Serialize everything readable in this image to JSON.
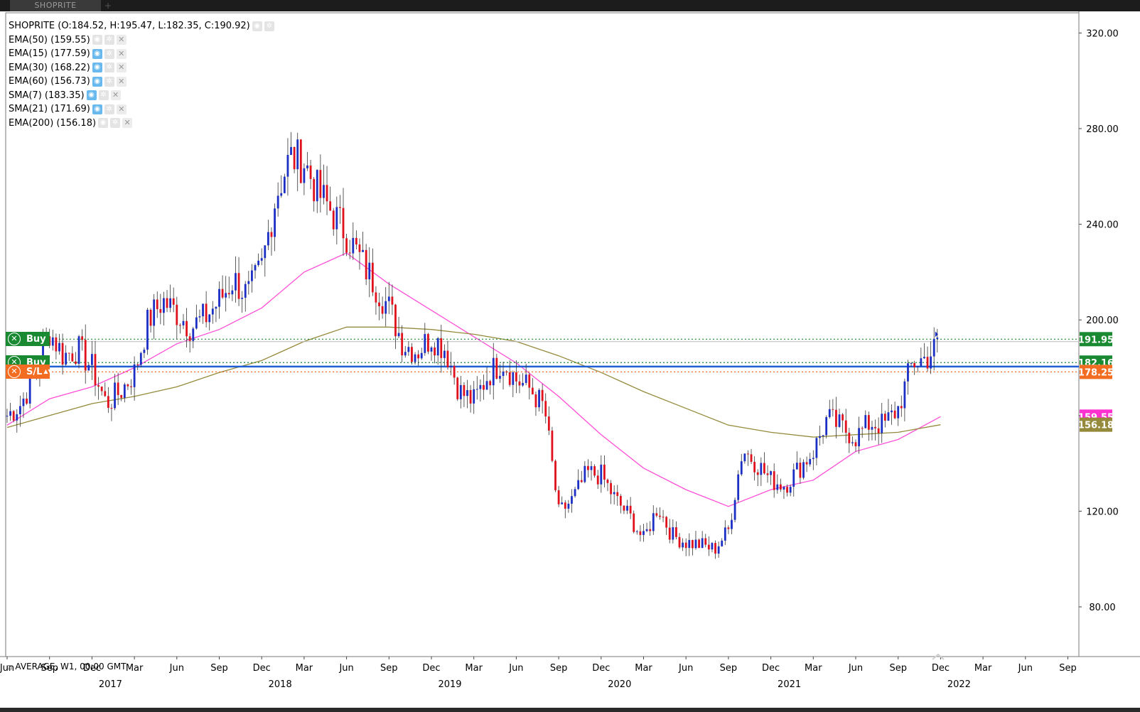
{
  "tabs": [
    {
      "label": "SHOPRITE",
      "active": true
    }
  ],
  "tab_add_label": "+",
  "legend": {
    "main": "SHOPRITE (O:184.52, H:195.47, L:182.35, C:190.92)",
    "indicators": [
      {
        "label": "EMA(50) (159.55)",
        "visible": false
      },
      {
        "label": "EMA(15) (177.59)",
        "visible": true
      },
      {
        "label": "EMA(30) (168.22)",
        "visible": true
      },
      {
        "label": "EMA(60) (156.73)",
        "visible": true
      },
      {
        "label": "SMA(7) (183.35)",
        "visible": true
      },
      {
        "label": "SMA(21) (171.69)",
        "visible": true
      },
      {
        "label": "EMA(200) (156.18)",
        "visible": false
      }
    ],
    "icons": {
      "eye": "eye-icon",
      "gear": "gear-icon",
      "close": "close-icon"
    }
  },
  "trade_tags": [
    {
      "label": "Buy",
      "color": "#1a8a32",
      "icon": "close-circle-icon"
    },
    {
      "label": "Buy",
      "color": "#1a8a32",
      "icon": "close-circle-icon"
    },
    {
      "label": "S/L",
      "color": "#f26d21",
      "icon": "close-circle-icon"
    }
  ],
  "status": {
    "label": "AVERAGE, W1, 00:00 GMT"
  },
  "chart_data": {
    "type": "candlestick",
    "symbol": "SHOPRITE",
    "timeframe": "W1",
    "ylim": [
      68,
      328
    ],
    "y_ticks": [
      80,
      120,
      160,
      200,
      240,
      280,
      320
    ],
    "y_tick_labels": [
      "80.00",
      "120.00",
      "",
      "200.00",
      "240.00",
      "280.00",
      "320.00"
    ],
    "x_ticks": [
      {
        "label": "Jun",
        "date": "2016-06"
      },
      {
        "label": "Sep",
        "date": "2016-09"
      },
      {
        "label": "Dec",
        "date": "2016-12"
      },
      {
        "label": "Mar",
        "date": "2017-03"
      },
      {
        "label": "Jun",
        "date": "2017-06"
      },
      {
        "label": "Sep",
        "date": "2017-09"
      },
      {
        "label": "Dec",
        "date": "2017-12"
      },
      {
        "label": "Mar",
        "date": "2018-03"
      },
      {
        "label": "Jun",
        "date": "2018-06"
      },
      {
        "label": "Sep",
        "date": "2018-09"
      },
      {
        "label": "Dec",
        "date": "2018-12"
      },
      {
        "label": "Mar",
        "date": "2019-03"
      },
      {
        "label": "Jun",
        "date": "2019-06"
      },
      {
        "label": "Sep",
        "date": "2019-09"
      },
      {
        "label": "Dec",
        "date": "2019-12"
      },
      {
        "label": "Mar",
        "date": "2020-03"
      },
      {
        "label": "Jun",
        "date": "2020-06"
      },
      {
        "label": "Sep",
        "date": "2020-09"
      },
      {
        "label": "Dec",
        "date": "2020-12"
      },
      {
        "label": "Mar",
        "date": "2021-03"
      },
      {
        "label": "Jun",
        "date": "2021-06"
      },
      {
        "label": "Sep",
        "date": "2021-09"
      },
      {
        "label": "Dec",
        "date": "2021-12"
      },
      {
        "label": "Mar",
        "date": "2022-03"
      },
      {
        "label": "Jun",
        "date": "2022-06"
      },
      {
        "label": "Sep",
        "date": "2022-09"
      }
    ],
    "years": [
      {
        "label": "2017",
        "date": "2016-12"
      },
      {
        "label": "2018",
        "date": "2017-12"
      },
      {
        "label": "2019",
        "date": "2018-12"
      },
      {
        "label": "2020",
        "date": "2019-12"
      },
      {
        "label": "2021",
        "date": "2020-12"
      },
      {
        "label": "2022",
        "date": "2021-12"
      }
    ],
    "price_path": [
      [
        "2016-06",
        160
      ],
      [
        "2016-07",
        165
      ],
      [
        "2016-08",
        178
      ],
      [
        "2016-09",
        195
      ],
      [
        "2016-10",
        185
      ],
      [
        "2016-11",
        188
      ],
      [
        "2016-12",
        180
      ],
      [
        "2017-01",
        165
      ],
      [
        "2017-02",
        170
      ],
      [
        "2017-03",
        178
      ],
      [
        "2017-04",
        200
      ],
      [
        "2017-05",
        208
      ],
      [
        "2017-06",
        203
      ],
      [
        "2017-07",
        197
      ],
      [
        "2017-08",
        201
      ],
      [
        "2017-09",
        208
      ],
      [
        "2017-10",
        217
      ],
      [
        "2017-11",
        210
      ],
      [
        "2017-12",
        222
      ],
      [
        "2018-01",
        252
      ],
      [
        "2018-02",
        268
      ],
      [
        "2018-03",
        266
      ],
      [
        "2018-04",
        253
      ],
      [
        "2018-05",
        245
      ],
      [
        "2018-06",
        236
      ],
      [
        "2018-07",
        225
      ],
      [
        "2018-08",
        215
      ],
      [
        "2018-09",
        205
      ],
      [
        "2018-10",
        190
      ],
      [
        "2018-11",
        187
      ],
      [
        "2018-12",
        193
      ],
      [
        "2019-01",
        188
      ],
      [
        "2019-02",
        170
      ],
      [
        "2019-03",
        166
      ],
      [
        "2019-04",
        177
      ],
      [
        "2019-05",
        183
      ],
      [
        "2019-06",
        175
      ],
      [
        "2019-07",
        171
      ],
      [
        "2019-08",
        163
      ],
      [
        "2019-09",
        119
      ],
      [
        "2019-10",
        125
      ],
      [
        "2019-11",
        136
      ],
      [
        "2019-12",
        135
      ],
      [
        "2020-01",
        125
      ],
      [
        "2020-02",
        118
      ],
      [
        "2020-03",
        108
      ],
      [
        "2020-04",
        122
      ],
      [
        "2020-05",
        110
      ],
      [
        "2020-06",
        107
      ],
      [
        "2020-07",
        106
      ],
      [
        "2020-08",
        104
      ],
      [
        "2020-09",
        112
      ],
      [
        "2020-10",
        146
      ],
      [
        "2020-11",
        140
      ],
      [
        "2020-12",
        133
      ],
      [
        "2021-01",
        131
      ],
      [
        "2021-02",
        138
      ],
      [
        "2021-03",
        145
      ],
      [
        "2021-04",
        159
      ],
      [
        "2021-05",
        155
      ],
      [
        "2021-06",
        151
      ],
      [
        "2021-07",
        157
      ],
      [
        "2021-08",
        156
      ],
      [
        "2021-09",
        163
      ],
      [
        "2021-10",
        182
      ],
      [
        "2021-11",
        184
      ],
      [
        "2021-12",
        191
      ]
    ],
    "series": [
      {
        "name": "EMA(50)",
        "color": "#ff4fd8",
        "values": [
          [
            "2016-06",
            156
          ],
          [
            "2016-09",
            167
          ],
          [
            "2016-12",
            172
          ],
          [
            "2017-03",
            180
          ],
          [
            "2017-06",
            190
          ],
          [
            "2017-09",
            196
          ],
          [
            "2017-12",
            205
          ],
          [
            "2018-03",
            220
          ],
          [
            "2018-06",
            228
          ],
          [
            "2018-09",
            215
          ],
          [
            "2018-12",
            204
          ],
          [
            "2019-03",
            193
          ],
          [
            "2019-06",
            182
          ],
          [
            "2019-09",
            168
          ],
          [
            "2019-12",
            152
          ],
          [
            "2020-03",
            138
          ],
          [
            "2020-06",
            129
          ],
          [
            "2020-09",
            122
          ],
          [
            "2020-12",
            129
          ],
          [
            "2021-03",
            133
          ],
          [
            "2021-06",
            145
          ],
          [
            "2021-09",
            150
          ],
          [
            "2021-12",
            159.55
          ]
        ]
      },
      {
        "name": "EMA(200)",
        "color": "#958a3c",
        "values": [
          [
            "2016-06",
            155
          ],
          [
            "2016-09",
            160
          ],
          [
            "2016-12",
            165
          ],
          [
            "2017-03",
            168
          ],
          [
            "2017-06",
            172
          ],
          [
            "2017-09",
            178
          ],
          [
            "2017-12",
            183
          ],
          [
            "2018-03",
            191
          ],
          [
            "2018-06",
            197
          ],
          [
            "2018-09",
            197
          ],
          [
            "2018-12",
            196
          ],
          [
            "2019-03",
            194
          ],
          [
            "2019-06",
            191
          ],
          [
            "2019-09",
            185
          ],
          [
            "2019-12",
            178
          ],
          [
            "2020-03",
            170
          ],
          [
            "2020-06",
            163
          ],
          [
            "2020-09",
            156
          ],
          [
            "2020-12",
            153
          ],
          [
            "2021-03",
            151
          ],
          [
            "2021-06",
            152
          ],
          [
            "2021-09",
            153
          ],
          [
            "2021-12",
            156.18
          ]
        ]
      }
    ],
    "price_lines": [
      {
        "value": 191.95,
        "label": "191.95",
        "color": "#1a8a32",
        "style": "dotted"
      },
      {
        "value": 190.92,
        "label": "",
        "color": "#bbbbbb",
        "style": "solid"
      },
      {
        "value": 182.16,
        "label": "182.16",
        "color": "#1a8a32",
        "style": "dotted"
      },
      {
        "value": 180.5,
        "label": "",
        "color": "#1f5fd6",
        "style": "solid-thick"
      },
      {
        "value": 178.25,
        "label": "178.25",
        "color": "#f26d21",
        "style": "dotted"
      }
    ],
    "indicator_badges": [
      {
        "value": 159.55,
        "label": "159.55",
        "color": "#ff2fd0"
      },
      {
        "value": 156.18,
        "label": "156.18",
        "color": "#958a3c"
      }
    ],
    "colors": {
      "up": "#1b2fc4",
      "down": "#e0101c",
      "wick": "#333333"
    }
  }
}
